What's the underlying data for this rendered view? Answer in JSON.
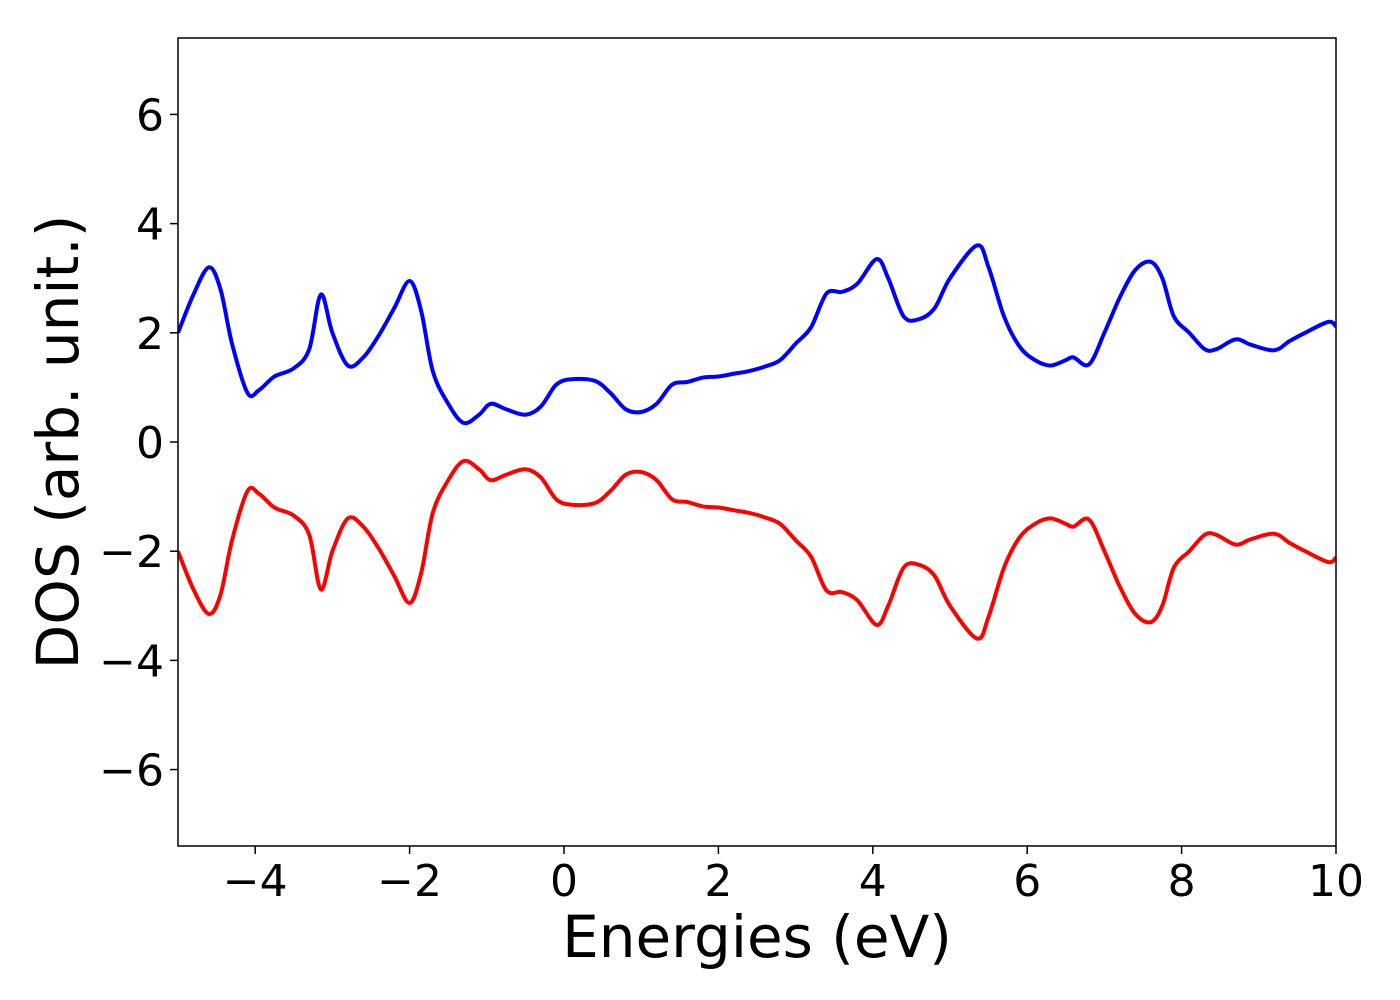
{
  "chart_data": {
    "type": "line",
    "xlabel": "Energies (eV)",
    "ylabel": "DOS (arb. unit.)",
    "x": [
      -5,
      -4.8,
      -4.6,
      -4.45,
      -4.3,
      -4.1,
      -3.95,
      -3.75,
      -3.5,
      -3.3,
      -3.15,
      -3.0,
      -2.8,
      -2.6,
      -2.4,
      -2.2,
      -2.0,
      -1.85,
      -1.7,
      -1.5,
      -1.3,
      -1.1,
      -0.95,
      -0.75,
      -0.5,
      -0.3,
      -0.1,
      0.1,
      0.4,
      0.6,
      0.8,
      1.0,
      1.2,
      1.4,
      1.6,
      1.8,
      2.0,
      2.2,
      2.4,
      2.6,
      2.8,
      3.0,
      3.2,
      3.4,
      3.6,
      3.8,
      4.05,
      4.2,
      4.4,
      4.6,
      4.8,
      5.0,
      5.35,
      5.5,
      5.7,
      5.9,
      6.1,
      6.3,
      6.5,
      6.6,
      6.8,
      7.0,
      7.2,
      7.4,
      7.6,
      7.75,
      7.9,
      8.1,
      8.3,
      8.45,
      8.7,
      8.9,
      9.2,
      9.4,
      9.6,
      9.9,
      10
    ],
    "series": [
      {
        "color": "#0000ff",
        "values": [
          2.0,
          2.7,
          3.2,
          2.8,
          1.8,
          0.9,
          0.95,
          1.2,
          1.35,
          1.7,
          2.7,
          2.0,
          1.4,
          1.55,
          1.95,
          2.45,
          2.95,
          2.4,
          1.3,
          0.7,
          0.35,
          0.5,
          0.7,
          0.6,
          0.5,
          0.65,
          1.05,
          1.15,
          1.12,
          0.9,
          0.6,
          0.55,
          0.7,
          1.05,
          1.1,
          1.18,
          1.2,
          1.25,
          1.3,
          1.38,
          1.5,
          1.8,
          2.1,
          2.72,
          2.75,
          2.9,
          3.35,
          3.0,
          2.3,
          2.25,
          2.45,
          3.0,
          3.6,
          3.2,
          2.3,
          1.75,
          1.5,
          1.4,
          1.5,
          1.55,
          1.42,
          2.0,
          2.65,
          3.15,
          3.3,
          3.0,
          2.3,
          2.0,
          1.7,
          1.7,
          1.88,
          1.78,
          1.68,
          1.85,
          2.0,
          2.2,
          2.12
        ]
      },
      {
        "color": "#ff0000",
        "values": [
          -2.0,
          -2.7,
          -3.15,
          -2.8,
          -1.8,
          -0.9,
          -0.95,
          -1.2,
          -1.35,
          -1.7,
          -2.7,
          -2.0,
          -1.4,
          -1.55,
          -1.95,
          -2.45,
          -2.95,
          -2.4,
          -1.3,
          -0.7,
          -0.35,
          -0.5,
          -0.7,
          -0.6,
          -0.5,
          -0.65,
          -1.05,
          -1.15,
          -1.12,
          -0.9,
          -0.6,
          -0.55,
          -0.7,
          -1.05,
          -1.1,
          -1.18,
          -1.2,
          -1.25,
          -1.3,
          -1.38,
          -1.5,
          -1.8,
          -2.1,
          -2.72,
          -2.75,
          -2.9,
          -3.35,
          -3.0,
          -2.3,
          -2.25,
          -2.45,
          -3.0,
          -3.6,
          -3.2,
          -2.3,
          -1.75,
          -1.5,
          -1.4,
          -1.5,
          -1.55,
          -1.42,
          -2.0,
          -2.65,
          -3.15,
          -3.3,
          -3.0,
          -2.3,
          -2.0,
          -1.7,
          -1.7,
          -1.88,
          -1.78,
          -1.68,
          -1.85,
          -2.0,
          -2.2,
          -2.12
        ]
      }
    ],
    "xlim": [
      -5,
      10
    ],
    "xticks": [
      {
        "value": -4,
        "label": "−4"
      },
      {
        "value": -2,
        "label": "−2"
      },
      0,
      2,
      4,
      6,
      8,
      10
    ],
    "ylim": [
      -7.4,
      7.4
    ],
    "yticks": [
      {
        "value": -6,
        "label": "−6"
      },
      {
        "value": -4,
        "label": "−4"
      },
      {
        "value": -2,
        "label": "−2"
      },
      0,
      2,
      4,
      6
    ]
  }
}
